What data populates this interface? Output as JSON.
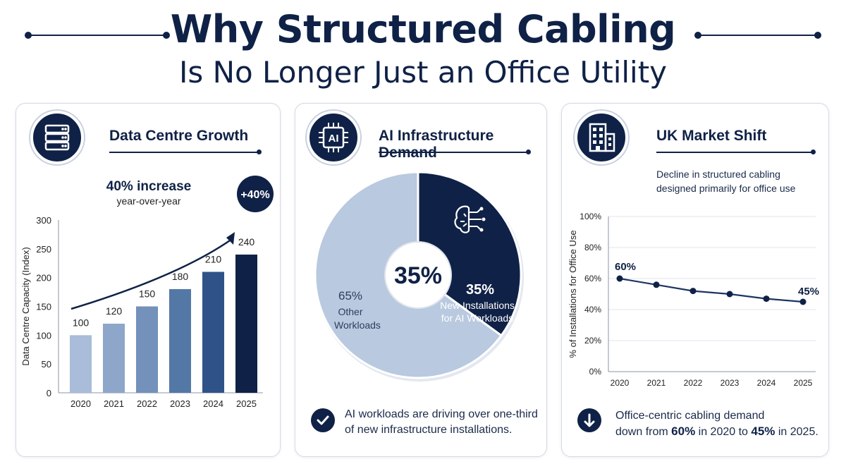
{
  "header": {
    "title": "Why Structured Cabling",
    "subtitle": "Is No Longer Just an Office Utility"
  },
  "panel1": {
    "title": "Data Centre Growth",
    "icon": "server-icon",
    "increase_label": "40% increase",
    "increase_sub": "year-over-year",
    "badge": "+40%"
  },
  "panel2": {
    "title": "AI Infrastructure Demand",
    "icon": "ai-chip-icon",
    "center_label": "35%",
    "ai_pct": "35%",
    "ai_label_line1": "New Installations",
    "ai_label_line2": "for AI Workloads",
    "other_pct": "65%",
    "other_label_line1": "Other",
    "other_label_line2": "Workloads",
    "note_line1": "AI workloads are driving over one-third",
    "note_line2": "of new infrastructure installations.",
    "note_icon": "check-icon"
  },
  "panel3": {
    "title": "UK Market Shift",
    "icon": "building-icon",
    "desc_line1": "Decline in structured cabling",
    "desc_line2": "designed primarily for office use",
    "start_label": "60%",
    "end_label": "45%",
    "note_line1": "Office-centric cabling demand",
    "note_pre": "down from",
    "note_v1": "60%",
    "note_mid": "in 2020 to",
    "note_v2": "45%",
    "note_post": "in 2025.",
    "note_icon": "arrow-down-icon"
  },
  "colors": {
    "navy": "#0f2146",
    "light_blue": "#b9c9df",
    "bar_gradient": [
      "#a9bcd9",
      "#8ea6c9",
      "#7391ba",
      "#5478a6",
      "#2f5388",
      "#0f2146"
    ]
  },
  "chart_data": [
    {
      "type": "bar",
      "categories": [
        "2020",
        "2021",
        "2022",
        "2023",
        "2024",
        "2025"
      ],
      "values": [
        100,
        120,
        150,
        180,
        210,
        240
      ],
      "data_labels": [
        "100",
        "120",
        "150",
        "180",
        "210",
        "240"
      ],
      "ylabel": "Data Centre Capacity (Index)",
      "xlabel": "",
      "ylim": [
        0,
        300
      ],
      "yticks": [
        "0",
        "50",
        "100",
        "150",
        "200",
        "250",
        "300"
      ],
      "grid": false
    },
    {
      "type": "pie",
      "slices": [
        {
          "label": "New Installations for AI Workloads",
          "value": 35
        },
        {
          "label": "Other Workloads",
          "value": 65
        }
      ]
    },
    {
      "type": "line",
      "x": [
        "2020",
        "2021",
        "2022",
        "2023",
        "2024",
        "2025"
      ],
      "values": [
        60,
        56,
        52,
        50,
        47,
        45
      ],
      "ylabel": "% of Installations for Office Use",
      "xlabel": "",
      "ylim": [
        0,
        100
      ],
      "yticks": [
        "0%",
        "20%",
        "40%",
        "60%",
        "80%",
        "100%"
      ],
      "grid": true
    }
  ]
}
